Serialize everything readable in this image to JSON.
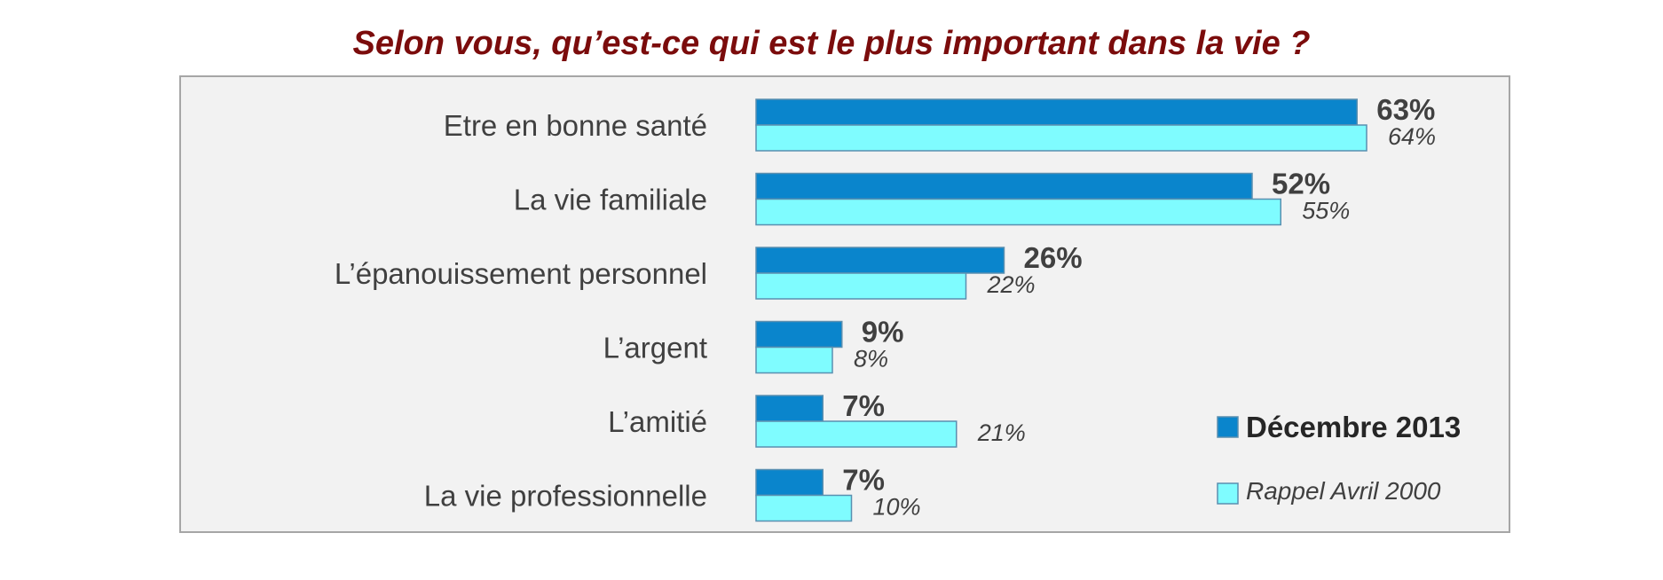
{
  "colors": {
    "title": "#7b0c0c",
    "series_main": "#0a85cc",
    "series_ref": "#7ffcff",
    "plot_bg": "#f2f2f2",
    "border": "#a6a6a6"
  },
  "chart_data": {
    "type": "bar",
    "orientation": "horizontal",
    "title": "Selon vous, qu’est-ce qui est le plus important dans la vie ?",
    "categories": [
      "Etre en bonne santé",
      "La vie familiale",
      "L’épanouissement personnel",
      "L’argent",
      "L’amitié",
      "La vie professionnelle"
    ],
    "series": [
      {
        "name": "Décembre 2013",
        "values": [
          63,
          52,
          26,
          9,
          7,
          7
        ],
        "labels": [
          "63%",
          "52%",
          "26%",
          "9%",
          "7%",
          "7%"
        ]
      },
      {
        "name": "Rappel Avril 2000",
        "values": [
          64,
          55,
          22,
          8,
          21,
          10
        ],
        "labels": [
          "64%",
          "55%",
          "22%",
          "8%",
          "21%",
          "10%"
        ]
      }
    ],
    "xlim": [
      0,
      100
    ],
    "grid": false,
    "legend": "bottom-right"
  }
}
